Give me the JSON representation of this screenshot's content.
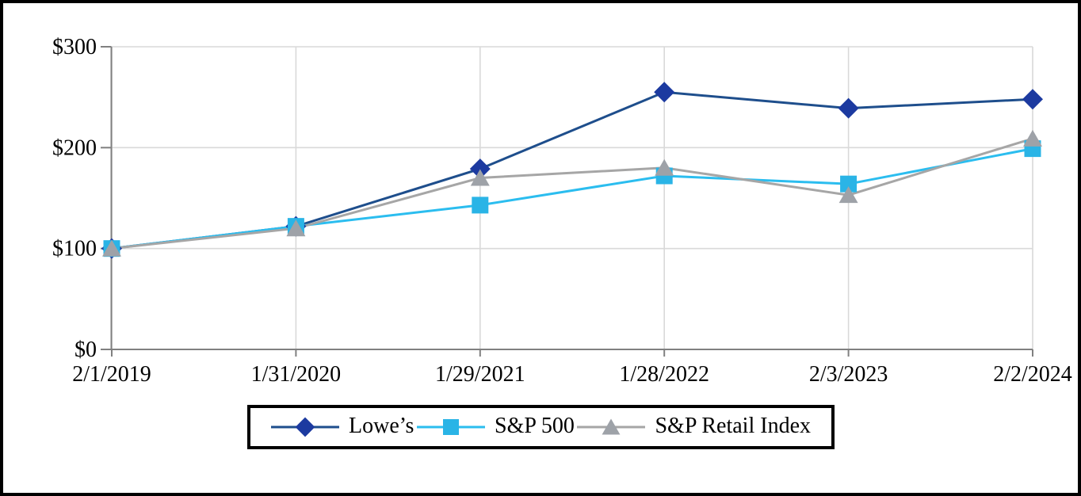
{
  "chart_data": {
    "type": "line",
    "title": "",
    "x_label": "",
    "y_label": "",
    "x_categories": [
      "2/1/2019",
      "1/31/2020",
      "1/29/2021",
      "1/28/2022",
      "2/3/2023",
      "2/2/2024"
    ],
    "series": [
      {
        "name": "Lowe’s",
        "marker": "diamond",
        "marker_color": "#1C3AA0",
        "line_color": "#1E4E8C",
        "values": [
          100,
          122,
          179,
          255,
          239,
          248
        ]
      },
      {
        "name": "S&P 500",
        "marker": "square",
        "marker_color": "#2AB4E6",
        "line_color": "#2BBDEF",
        "values": [
          100,
          122,
          143,
          172,
          164,
          199
        ]
      },
      {
        "name": "S&P Retail Index",
        "marker": "triangle",
        "marker_color": "#9EA2A8",
        "line_color": "#A6A6A6",
        "values": [
          100,
          120,
          170,
          180,
          153,
          209
        ]
      }
    ],
    "y_axis": {
      "tick_labels": [
        "$0",
        "$100",
        "$200",
        "$300"
      ],
      "tick_values": [
        0,
        100,
        200,
        300
      ],
      "range": [
        0,
        300
      ]
    },
    "grid": true,
    "legend_position": "bottom",
    "colors": {
      "gridline": "#D9D9D9",
      "axis": "#808080",
      "text": "#000000",
      "background": "#FFFFFF",
      "border": "#000000"
    }
  }
}
